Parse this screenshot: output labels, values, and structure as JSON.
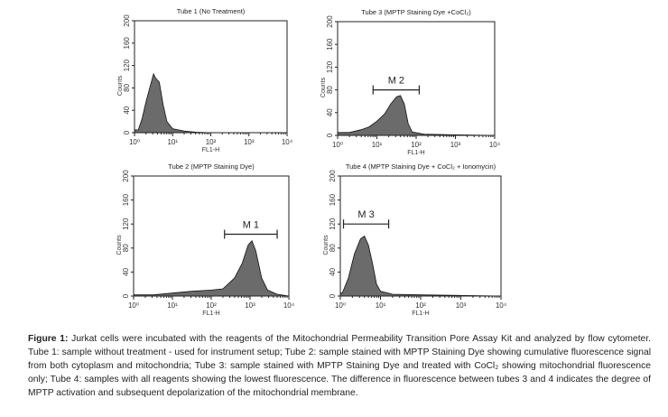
{
  "chart_data": [
    {
      "type": "area",
      "title": "Tube 1 (No Treatment)",
      "xlabel": "FL1-H",
      "ylabel": "Counts",
      "xscale": "log",
      "xlim": [
        1,
        10000
      ],
      "ylim": [
        0,
        200
      ],
      "xticks": [
        "10⁰",
        "10¹",
        "10²",
        "10³",
        "10⁴"
      ],
      "yticks": [
        "0",
        "40",
        "80",
        "120",
        "160",
        "200"
      ],
      "marker": null,
      "log10_x": [
        0,
        0,
        0.1,
        0.2,
        0.3,
        0.4,
        0.5,
        0.55,
        0.65,
        0.75,
        0.85,
        1.0,
        1.3,
        1.6,
        2.0
      ],
      "counts": [
        85,
        5,
        5,
        25,
        55,
        80,
        105,
        98,
        90,
        50,
        20,
        7,
        3,
        1,
        0
      ]
    },
    {
      "type": "area",
      "title": "Tube 3 (MPTP Staining Dye +CoCl₂)",
      "xlabel": "FL1-H",
      "ylabel": "Counts",
      "xscale": "log",
      "xlim": [
        1,
        10000
      ],
      "ylim": [
        0,
        200
      ],
      "xticks": [
        "10⁰",
        "10¹",
        "10²",
        "10³",
        "10⁴"
      ],
      "yticks": [
        "0",
        "40",
        "80",
        "120",
        "160",
        "200"
      ],
      "marker": {
        "label": "M 2",
        "range": [
          8,
          120
        ],
        "count": 80
      },
      "log10_x": [
        0,
        0.3,
        0.6,
        0.8,
        1.0,
        1.2,
        1.35,
        1.5,
        1.6,
        1.7,
        1.8,
        1.9,
        2.2,
        3.0,
        4.0
      ],
      "counts": [
        5,
        5,
        10,
        15,
        25,
        38,
        55,
        68,
        70,
        55,
        20,
        6,
        2,
        1,
        0
      ]
    },
    {
      "type": "area",
      "title": "Tube 2 (MPTP Staining Dye)",
      "xlabel": "FL1-H",
      "ylabel": "Counts",
      "xscale": "log",
      "xlim": [
        1,
        10000
      ],
      "ylim": [
        0,
        200
      ],
      "xticks": [
        "10⁰",
        "10¹",
        "10²",
        "10³",
        "10⁴"
      ],
      "yticks": [
        "0",
        "40",
        "80",
        "120",
        "160",
        "200"
      ],
      "marker": {
        "label": "M 1",
        "range": [
          220,
          5000
        ],
        "count": 103
      },
      "log10_x": [
        0,
        0.5,
        1,
        1.5,
        2,
        2.3,
        2.6,
        2.8,
        2.95,
        3.05,
        3.15,
        3.3,
        3.45,
        3.7,
        4.0
      ],
      "counts": [
        2,
        2,
        5,
        8,
        10,
        12,
        30,
        55,
        85,
        92,
        75,
        30,
        10,
        3,
        0
      ]
    },
    {
      "type": "area",
      "title": "Tube 4 (MPTP Staining Dye + CoCl₂ + Ionomycin)",
      "xlabel": "FL1-H",
      "ylabel": "Counts",
      "xscale": "log",
      "xlim": [
        1,
        10000
      ],
      "ylim": [
        0,
        200
      ],
      "xticks": [
        "10⁰",
        "10¹",
        "10²",
        "10³",
        "10⁴"
      ],
      "yticks": [
        "0",
        "40",
        "80",
        "120",
        "160",
        "200"
      ],
      "marker": {
        "label": "M 3",
        "range": [
          1.2,
          16
        ],
        "count": 120
      },
      "log10_x": [
        0,
        0,
        0.05,
        0.2,
        0.35,
        0.5,
        0.6,
        0.7,
        0.8,
        0.9,
        1.0,
        1.3,
        2.0,
        4.0
      ],
      "counts": [
        140,
        5,
        5,
        30,
        70,
        95,
        100,
        85,
        55,
        20,
        8,
        3,
        2,
        0
      ]
    }
  ],
  "caption": {
    "label": "Figure 1:",
    "text": " Jurkat cells were incubated with the reagents of the Mitochondrial Permeability Transition Pore Assay Kit and analyzed by flow cytometer. Tube 1: sample without treatment - used for instrument setup; Tube 2: sample stained with MPTP Staining Dye showing cumulative fluorescence signal from both cytoplasm and mitochondria; Tube 3: sample stained with MPTP Staining Dye and treated with CoCl₂ showing mitochondrial fluorescence only; Tube 4: samples with all reagents showing the lowest fluorescence. The difference in fluorescence between tubes 3 and 4 indicates the degree of MPTP activation and subsequent depolarization of the mitochondrial membrane."
  },
  "colors": {
    "fill": "#6b6b6b",
    "stroke": "#111111",
    "axis": "#222222"
  }
}
